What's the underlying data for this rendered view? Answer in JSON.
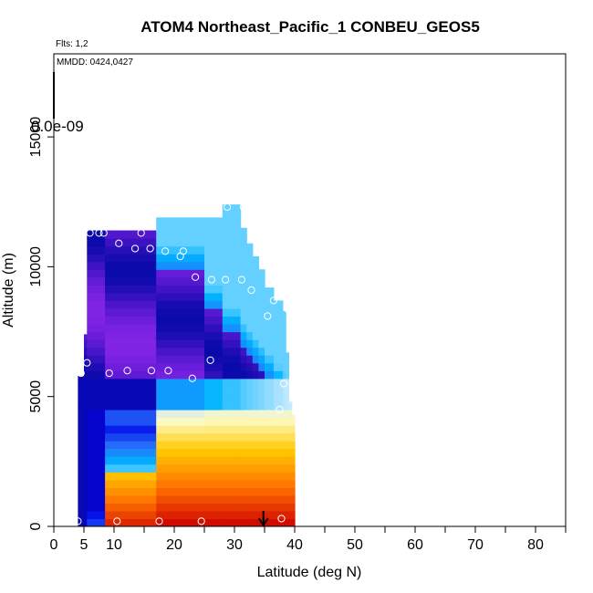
{
  "chart_data": {
    "type": "heatmap",
    "title": "ATOM4 Northeast_Pacific_1 CONBEU_GEOS5",
    "annotations": {
      "flights": "Flts: 1,2",
      "dates": "MMDD: 0424,0427"
    },
    "xlabel": "Latitude (deg N)",
    "ylabel": "Altitude (m)",
    "xlim": [
      0,
      85
    ],
    "ylim": [
      0,
      18200
    ],
    "x_ticks": [
      0,
      5,
      10,
      20,
      30,
      40,
      50,
      60,
      70,
      80
    ],
    "x_minor_ticks": [
      15,
      25,
      35,
      45,
      55,
      65,
      75,
      85
    ],
    "y_ticks": [
      0,
      5000,
      10000,
      15000
    ],
    "colorbar_label": "0.0e-09",
    "colors": {
      "frame": "#000000",
      "points": "#ffffff",
      "marker": "#000000"
    },
    "curtain_columns": [
      {
        "lat_from": 4.0,
        "lat_to": 5.0,
        "top": 5800
      },
      {
        "lat_from": 5.0,
        "lat_to": 5.5,
        "top": 7400
      },
      {
        "lat_from": 5.5,
        "lat_to": 8.5,
        "top": 11400
      },
      {
        "lat_from": 8.5,
        "lat_to": 17.0,
        "top": 11400
      },
      {
        "lat_from": 17.0,
        "lat_to": 25.0,
        "top": 11900
      },
      {
        "lat_from": 25.0,
        "lat_to": 28.0,
        "top": 11900
      },
      {
        "lat_from": 28.0,
        "lat_to": 31.0,
        "top": 12400
      },
      {
        "lat_from": 31.0,
        "lat_to": 32.0,
        "top": 11500
      },
      {
        "lat_from": 32.0,
        "lat_to": 33.0,
        "top": 10900
      },
      {
        "lat_from": 33.0,
        "lat_to": 34.0,
        "top": 10400
      },
      {
        "lat_from": 34.0,
        "lat_to": 35.0,
        "top": 9900
      },
      {
        "lat_from": 35.0,
        "lat_to": 36.5,
        "top": 9200
      },
      {
        "lat_from": 36.5,
        "lat_to": 38.0,
        "top": 8700
      },
      {
        "lat_from": 38.0,
        "lat_to": 38.5,
        "top": 8300
      },
      {
        "lat_from": 38.5,
        "lat_to": 39.0,
        "top": 6700
      },
      {
        "lat_from": 39.0,
        "lat_to": 39.5,
        "top": 4800
      },
      {
        "lat_from": 39.5,
        "lat_to": 40.0,
        "top": 4300
      }
    ],
    "flight_points": [
      {
        "lat": 4.0,
        "alt": 200
      },
      {
        "lat": 4.5,
        "alt": 5900
      },
      {
        "lat": 5.5,
        "alt": 6300
      },
      {
        "lat": 6.0,
        "alt": 11300
      },
      {
        "lat": 7.5,
        "alt": 11300
      },
      {
        "lat": 8.3,
        "alt": 11300
      },
      {
        "lat": 9.2,
        "alt": 5900
      },
      {
        "lat": 10.5,
        "alt": 200
      },
      {
        "lat": 10.8,
        "alt": 10900
      },
      {
        "lat": 12.2,
        "alt": 6000
      },
      {
        "lat": 13.5,
        "alt": 10700
      },
      {
        "lat": 14.5,
        "alt": 11300
      },
      {
        "lat": 16.0,
        "alt": 10700
      },
      {
        "lat": 16.2,
        "alt": 6000
      },
      {
        "lat": 17.5,
        "alt": 200
      },
      {
        "lat": 18.5,
        "alt": 10600
      },
      {
        "lat": 19.0,
        "alt": 6000
      },
      {
        "lat": 21.0,
        "alt": 10400
      },
      {
        "lat": 21.5,
        "alt": 10600
      },
      {
        "lat": 23.0,
        "alt": 5700
      },
      {
        "lat": 23.5,
        "alt": 9600
      },
      {
        "lat": 24.5,
        "alt": 200
      },
      {
        "lat": 26.0,
        "alt": 6400
      },
      {
        "lat": 26.2,
        "alt": 9500
      },
      {
        "lat": 28.5,
        "alt": 9500
      },
      {
        "lat": 28.8,
        "alt": 12300
      },
      {
        "lat": 31.2,
        "alt": 9500
      },
      {
        "lat": 31.5,
        "alt": 12300
      },
      {
        "lat": 32.8,
        "alt": 9100
      },
      {
        "lat": 35.5,
        "alt": 8100
      },
      {
        "lat": 36.5,
        "alt": 8700
      },
      {
        "lat": 37.5,
        "alt": 4500
      },
      {
        "lat": 37.8,
        "alt": 300
      },
      {
        "lat": 38.2,
        "alt": 5500
      },
      {
        "lat": 38.7,
        "alt": 8400
      }
    ],
    "arrow_marker": {
      "lat": 34.8,
      "alt_from": 600,
      "alt_to": 0
    }
  }
}
